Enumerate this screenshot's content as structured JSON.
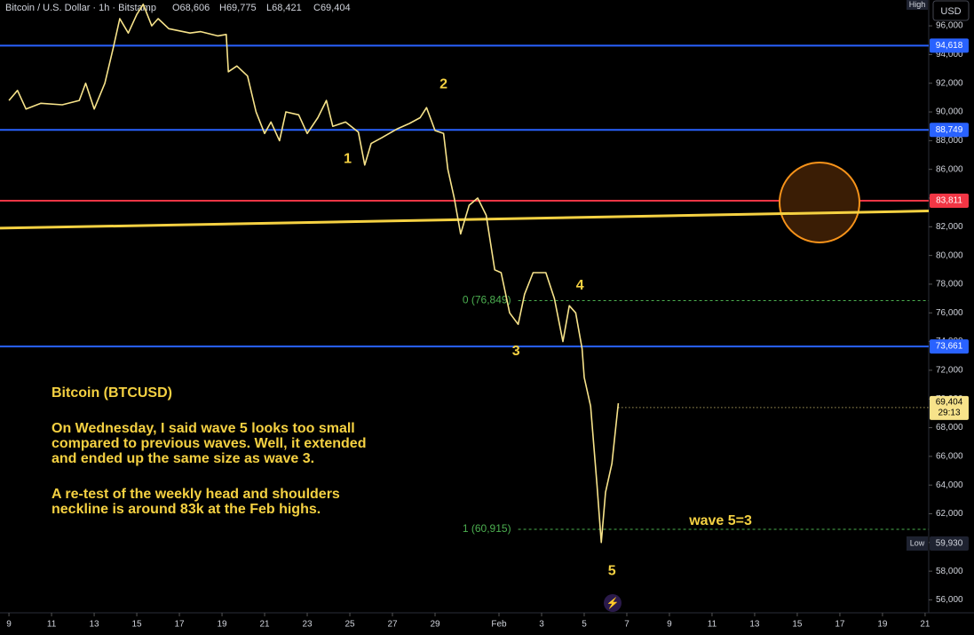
{
  "chart_data": {
    "type": "line",
    "title": "Bitcoin / U.S. Dollar · 1h · Bitstamp",
    "ohlc": {
      "o": "O68,606",
      "h": "H69,775",
      "l": "L68,421",
      "c": "C69,404"
    },
    "currency": "USD",
    "xlim": [
      -0.42,
      43.17
    ],
    "ylim": [
      55100,
      97800
    ],
    "xticks": [
      {
        "value": 0,
        "label": "9"
      },
      {
        "value": 2,
        "label": "11"
      },
      {
        "value": 4,
        "label": "13"
      },
      {
        "value": 6,
        "label": "15"
      },
      {
        "value": 8,
        "label": "17"
      },
      {
        "value": 10,
        "label": "19"
      },
      {
        "value": 12,
        "label": "21"
      },
      {
        "value": 14,
        "label": "23"
      },
      {
        "value": 16,
        "label": "25"
      },
      {
        "value": 18,
        "label": "27"
      },
      {
        "value": 20,
        "label": "29"
      },
      {
        "value": 23,
        "label": "Feb"
      },
      {
        "value": 25,
        "label": "3"
      },
      {
        "value": 27,
        "label": "5"
      },
      {
        "value": 29,
        "label": "7"
      },
      {
        "value": 31,
        "label": "9"
      },
      {
        "value": 33,
        "label": "11"
      },
      {
        "value": 35,
        "label": "13"
      },
      {
        "value": 37,
        "label": "15"
      },
      {
        "value": 39,
        "label": "17"
      },
      {
        "value": 41,
        "label": "19"
      },
      {
        "value": 43,
        "label": "21"
      }
    ],
    "yticks": [
      {
        "value": 56000,
        "label": "56,000"
      },
      {
        "value": 58000,
        "label": "58,000"
      },
      {
        "value": 60000,
        "label": "60,000"
      },
      {
        "value": 62000,
        "label": "62,000"
      },
      {
        "value": 64000,
        "label": "64,000"
      },
      {
        "value": 66000,
        "label": "66,000"
      },
      {
        "value": 68000,
        "label": "68,000"
      },
      {
        "value": 70000,
        "label": "70,000"
      },
      {
        "value": 72000,
        "label": "72,000"
      },
      {
        "value": 74000,
        "label": "74,000"
      },
      {
        "value": 76000,
        "label": "76,000"
      },
      {
        "value": 78000,
        "label": "78,000"
      },
      {
        "value": 80000,
        "label": "80,000"
      },
      {
        "value": 82000,
        "label": "82,000"
      },
      {
        "value": 84000,
        "label": "84,000"
      },
      {
        "value": 86000,
        "label": "86,000"
      },
      {
        "value": 88000,
        "label": "88,000"
      },
      {
        "value": 90000,
        "label": "90,000"
      },
      {
        "value": 92000,
        "label": "92,000"
      },
      {
        "value": 94000,
        "label": "94,000"
      },
      {
        "value": 96000,
        "label": "96,000"
      }
    ],
    "series": [
      {
        "name": "BTCUSD",
        "color": "#f7e38a",
        "x": [
          0,
          0.4,
          0.8,
          1.5,
          2.5,
          3.3,
          3.6,
          4,
          4.5,
          4.9,
          5.2,
          5.6,
          6,
          6.3,
          6.7,
          7,
          7.5,
          8.5,
          9,
          9.8,
          10.2,
          10.3,
          10.7,
          11.2,
          11.6,
          12,
          12.3,
          12.7,
          13,
          13.6,
          14,
          14.5,
          14.9,
          15.2,
          15.8,
          16.4,
          16.7,
          17,
          17.5,
          18.2,
          18.8,
          19.3,
          19.6,
          20,
          20.4,
          20.6,
          20.9,
          21.2,
          21.6,
          22,
          22.4,
          22.8,
          23.1,
          23.5,
          23.9,
          24.2,
          24.6,
          25.2,
          25.6,
          26,
          26.3,
          26.6,
          26.9,
          27,
          27.3,
          27.6,
          27.8,
          28,
          28.3,
          28.6
        ],
        "values": [
          90800,
          91500,
          90200,
          90600,
          90500,
          90800,
          92000,
          90200,
          92000,
          94500,
          96500,
          95500,
          96800,
          97500,
          96000,
          96500,
          95800,
          95500,
          95600,
          95300,
          95400,
          92800,
          93200,
          92500,
          90000,
          88500,
          89300,
          88000,
          90000,
          89800,
          88500,
          89600,
          90800,
          89000,
          89300,
          88600,
          86300,
          87800,
          88200,
          88800,
          89200,
          89600,
          90300,
          88700,
          88500,
          86000,
          84000,
          81500,
          83500,
          84000,
          82800,
          79000,
          78800,
          76000,
          75200,
          77300,
          78800,
          78800,
          77000,
          74000,
          76500,
          76000,
          73500,
          71500,
          69500,
          64000,
          60000,
          63500,
          65500,
          69700
        ]
      }
    ],
    "levels": [
      {
        "value": 94618,
        "label": "94,618",
        "color": "#2962ff"
      },
      {
        "value": 88749,
        "label": "88,749",
        "color": "#2962ff"
      },
      {
        "value": 83811,
        "label": "83,811",
        "color": "#f23645"
      },
      {
        "value": 73661,
        "label": "73,661",
        "color": "#2962ff"
      }
    ],
    "trendline": {
      "x": [
        -0.42,
        43.17
      ],
      "values": [
        81900,
        83100
      ],
      "color": "#f5d142"
    },
    "fib": [
      {
        "value": 76849,
        "label": "0 (76,849)",
        "x": 23.9
      },
      {
        "value": 60915,
        "label": "1 (60,915)",
        "x": 23.9
      }
    ],
    "last": {
      "value": 69404,
      "label": "69,404",
      "timer": "29:13"
    },
    "high_label": "High",
    "low": {
      "value": 59930,
      "label": "59,930",
      "tag": "Low"
    },
    "waves": [
      {
        "label": "1",
        "x": 15.9,
        "value": 86700
      },
      {
        "label": "2",
        "x": 20.4,
        "value": 91900
      },
      {
        "label": "3",
        "x": 23.8,
        "value": 73300
      },
      {
        "label": "4",
        "x": 26.8,
        "value": 77900
      },
      {
        "label": "5",
        "x": 28.3,
        "value": 58000
      }
    ],
    "wave_note": {
      "label": "wave 5=3",
      "x": 33.4,
      "value": 61500
    },
    "notes": [
      "Bitcoin (BTCUSD)",
      "On Wednesday, I said wave 5 looks too small",
      "compared to previous waves. Well, it extended",
      "and ended up the same size as wave 3.",
      "A re-test of the weekly head and shoulders",
      "neckline is around 83k at the Feb highs."
    ]
  }
}
